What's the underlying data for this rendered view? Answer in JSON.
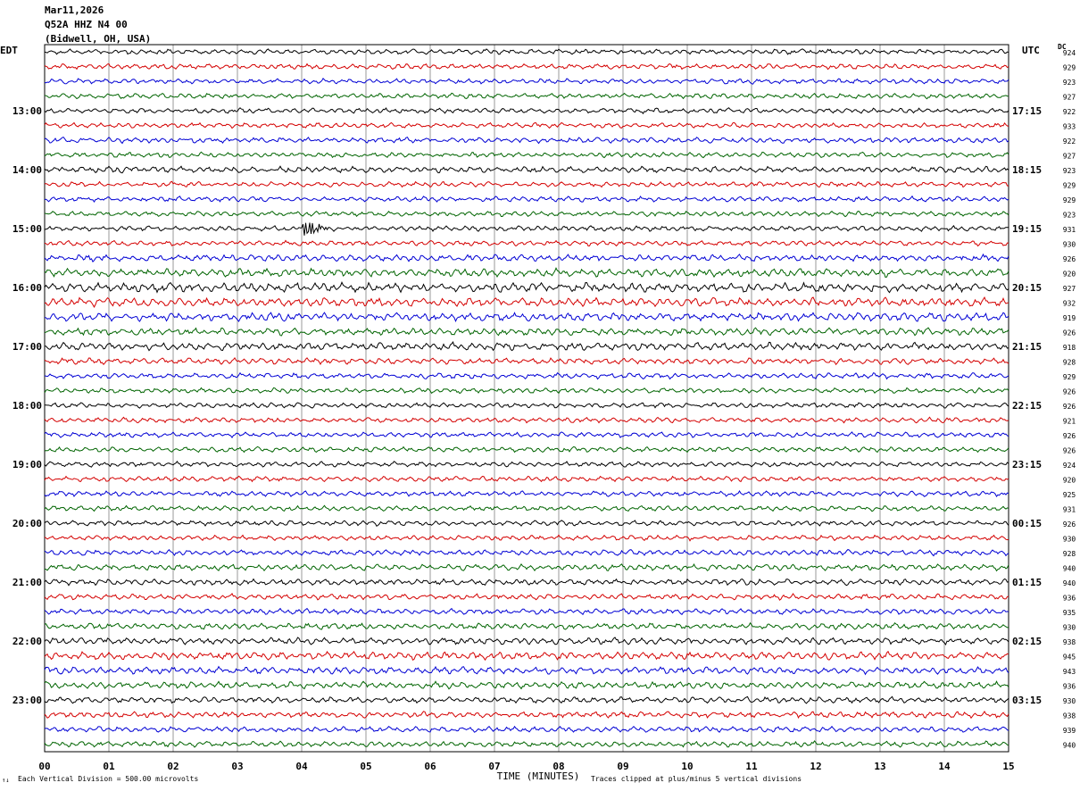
{
  "header": {
    "date": "Mar11,2026",
    "station": "Q52A HHZ N4 00",
    "location": "(Bidwell, OH, USA)"
  },
  "left_timezone": "EDT",
  "right_timezone": "UTC",
  "dc_header": "DC",
  "colors": [
    "#000000",
    "#d40000",
    "#0000d4",
    "#006400"
  ],
  "footer": {
    "scale_mark": "↑↓",
    "vertical_division": "Each Vertical Division =  500.00 microvolts",
    "clipping": "Traces clipped at plus/minus 5 vertical divisions"
  },
  "chart_data": {
    "type": "line",
    "title": "Mar11,2026 Q52A HHZ N4 00 (Bidwell, OH, USA)",
    "xlabel": "TIME (MINUTES)",
    "ylabel": "",
    "x_ticks": [
      "00",
      "01",
      "02",
      "03",
      "04",
      "05",
      "06",
      "07",
      "08",
      "09",
      "10",
      "11",
      "12",
      "13",
      "14",
      "15"
    ],
    "xlim": [
      0,
      15
    ],
    "rows_per_hour": 4,
    "row_count": 48,
    "left_hour_labels": [
      "13:00",
      "14:00",
      "15:00",
      "16:00",
      "17:00",
      "18:00",
      "19:00",
      "20:00",
      "21:00",
      "22:00",
      "23:00"
    ],
    "right_hour_labels": [
      "17:15",
      "18:15",
      "19:15",
      "20:15",
      "21:15",
      "22:15",
      "23:15",
      "00:15",
      "01:15",
      "02:15",
      "03:15"
    ],
    "dc_offsets": [
      924,
      929,
      923,
      927,
      922,
      933,
      922,
      927,
      923,
      929,
      929,
      923,
      931,
      930,
      926,
      920,
      927,
      932,
      919,
      926,
      918,
      928,
      929,
      926,
      926,
      921,
      926,
      926,
      924,
      920,
      925,
      931,
      926,
      930,
      928,
      940,
      940,
      936,
      935,
      930,
      938,
      945,
      943,
      936,
      930,
      938,
      939,
      940
    ],
    "trace_activity": [
      1.0,
      1.0,
      1.0,
      1.0,
      1.0,
      1.0,
      1.1,
      1.0,
      1.2,
      1.0,
      1.0,
      1.0,
      1.0,
      1.0,
      1.3,
      1.6,
      1.8,
      1.7,
      1.6,
      1.4,
      1.5,
      1.2,
      1.1,
      1.0,
      1.0,
      1.0,
      1.0,
      1.0,
      1.0,
      1.0,
      1.0,
      1.0,
      1.0,
      1.0,
      1.1,
      1.2,
      1.2,
      1.1,
      1.1,
      1.2,
      1.3,
      1.5,
      1.4,
      1.3,
      1.2,
      1.2,
      1.1,
      1.1
    ],
    "events": [
      {
        "row": 12,
        "minute": 4.1,
        "amplitude": 3.0
      }
    ],
    "grid": true
  }
}
